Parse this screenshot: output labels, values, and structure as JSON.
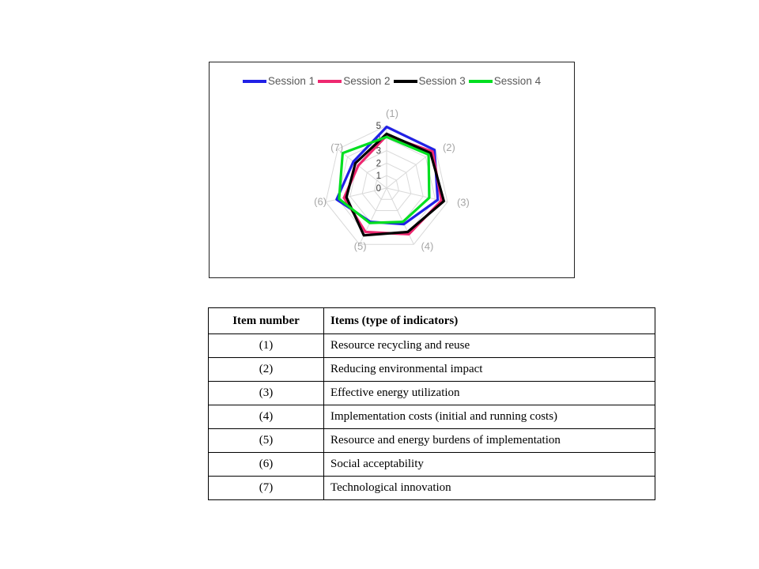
{
  "chart": {
    "legend_text_color": "#595959",
    "category_label_color": "#a6a6a6",
    "tick_label_color": "#404040",
    "grid_color": "#d9d9d9"
  },
  "chart_data": {
    "type": "line",
    "subtype": "radar",
    "title": "",
    "categories": [
      "(1)",
      "(2)",
      "(3)",
      "(4)",
      "(5)",
      "(6)",
      "(7)"
    ],
    "rmin": 0,
    "rmax": 5,
    "tick_step": 1,
    "tick_labels": [
      "0",
      "1",
      "2",
      "3",
      "4",
      "5"
    ],
    "grid": true,
    "legend_position": "top",
    "series": [
      {
        "name": "Session 1",
        "color": "#2020e6",
        "values": [
          4.9,
          4.9,
          4.2,
          3.2,
          3.0,
          4.1,
          3.4
        ]
      },
      {
        "name": "Session 2",
        "color": "#ee2870",
        "values": [
          4.2,
          4.7,
          4.5,
          4.1,
          3.9,
          3.5,
          2.9
        ]
      },
      {
        "name": "Session 3",
        "color": "#000000",
        "values": [
          4.35,
          4.5,
          4.7,
          3.9,
          4.2,
          3.3,
          3.2
        ]
      },
      {
        "name": "Session 4",
        "color": "#00df20",
        "values": [
          4.1,
          4.3,
          3.5,
          3.0,
          3.1,
          3.9,
          4.5
        ]
      }
    ]
  },
  "table": {
    "headers": [
      "Item number",
      "Items (type of indicators)"
    ],
    "rows": [
      {
        "num": "(1)",
        "desc": "Resource recycling and reuse"
      },
      {
        "num": "(2)",
        "desc": "Reducing environmental impact"
      },
      {
        "num": "(3)",
        "desc": "Effective energy utilization"
      },
      {
        "num": "(4)",
        "desc": "Implementation costs (initial and running costs)"
      },
      {
        "num": "(5)",
        "desc": "Resource and energy burdens of implementation"
      },
      {
        "num": "(6)",
        "desc": "Social acceptability"
      },
      {
        "num": "(7)",
        "desc": "Technological innovation"
      }
    ]
  }
}
